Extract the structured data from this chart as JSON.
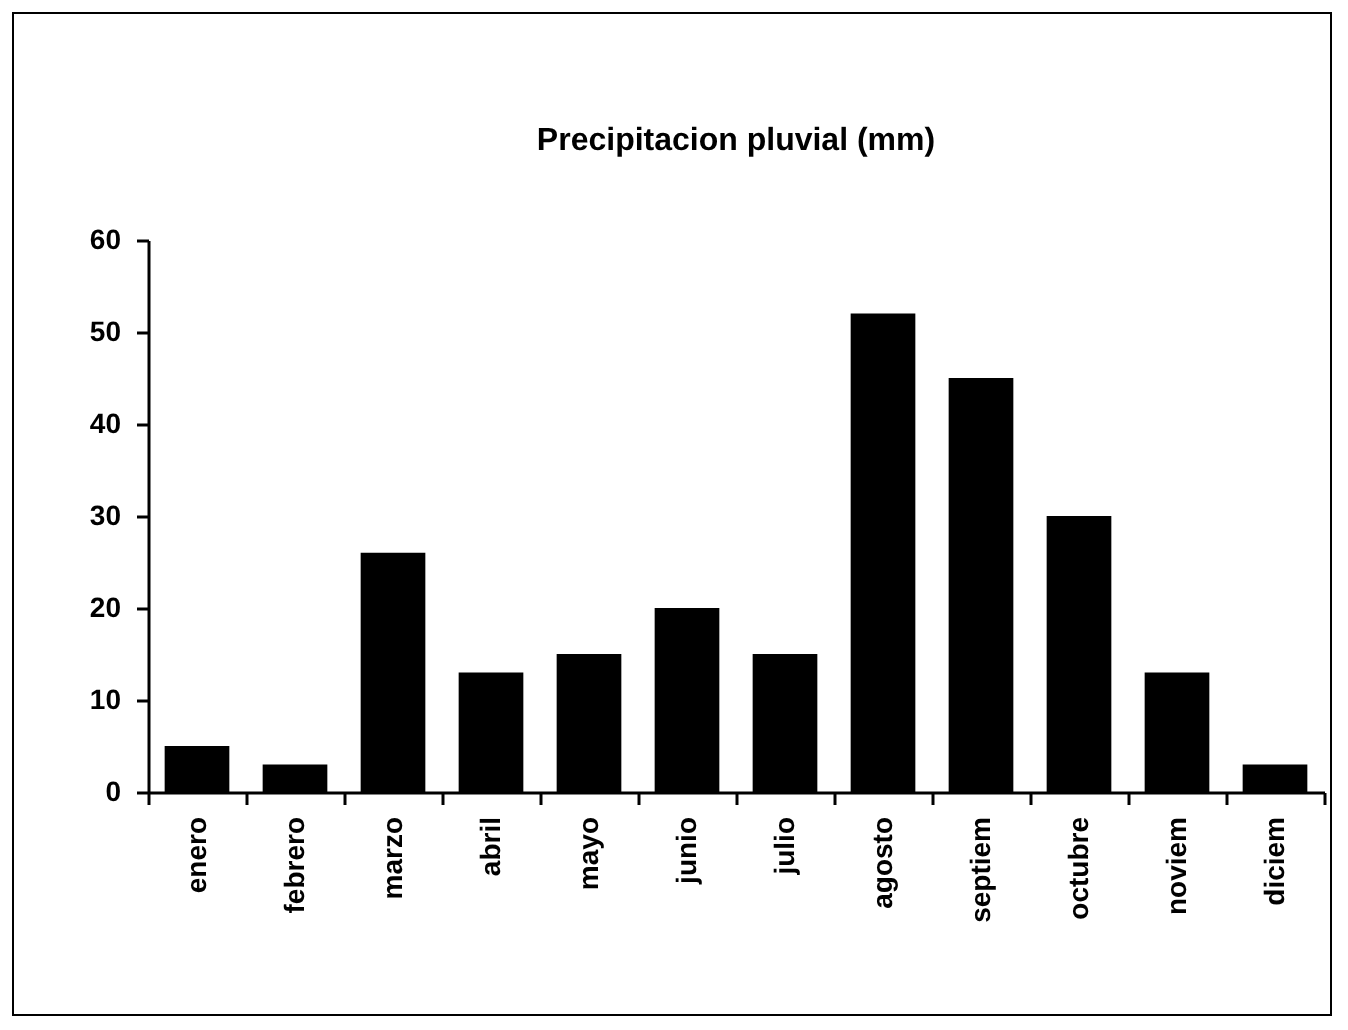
{
  "chart_data": {
    "type": "bar",
    "title": "Precipitacion pluvial (mm)",
    "categories": [
      "enero",
      "febrero",
      "marzo",
      "abril",
      "mayo",
      "junio",
      "julio",
      "agosto",
      "septiem",
      "octubre",
      "noviem",
      "diciem"
    ],
    "values": [
      5,
      3,
      26,
      13,
      15,
      20,
      15,
      52,
      45,
      30,
      13,
      3
    ],
    "color": "#000000",
    "ylim": [
      0,
      60
    ],
    "yticks": [
      0,
      10,
      20,
      30,
      40,
      50,
      60
    ],
    "grid": false
  }
}
